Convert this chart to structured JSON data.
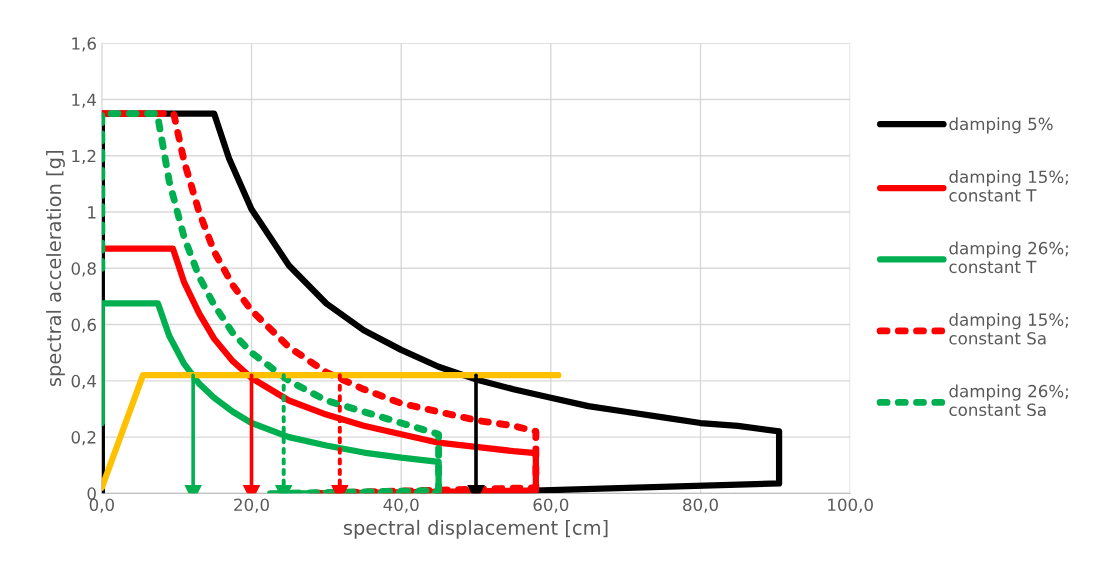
{
  "chart_data": {
    "type": "line",
    "xlabel": "spectral displacement [cm]",
    "ylabel": "spectral acceleration [g]",
    "xlim": [
      0,
      100
    ],
    "xticks": [
      {
        "value": 0,
        "label": "0,0"
      },
      {
        "value": 20,
        "label": "20,0"
      },
      {
        "value": 40,
        "label": "40,0"
      },
      {
        "value": 60,
        "label": "60,0"
      },
      {
        "value": 80,
        "label": "80,0"
      },
      {
        "value": 100,
        "label": "100,0"
      }
    ],
    "ylim": [
      0,
      1.6
    ],
    "yticks": [
      0,
      {
        "value": 0.2,
        "label": "0,2"
      },
      {
        "value": 0.4,
        "label": "0,4"
      },
      {
        "value": 0.6,
        "label": "0,6"
      },
      {
        "value": 0.8,
        "label": "0,8"
      },
      1,
      {
        "value": 1.2,
        "label": "1,2"
      },
      {
        "value": 1.4,
        "label": "1,4"
      },
      {
        "value": 1.6,
        "label": "1,6"
      }
    ],
    "grid": true,
    "legend": "right",
    "marker": "none",
    "series": [
      {
        "name": "damping 5%",
        "color": "#000000",
        "line_style": "solid",
        "x": [
          0,
          0,
          15,
          17,
          20,
          25,
          30,
          35,
          40,
          45,
          50,
          55,
          60,
          65,
          70,
          75,
          80,
          85,
          90.5,
          90.5,
          45
        ],
        "values": [
          0,
          1.35,
          1.35,
          1.19,
          1.01,
          0.81,
          0.675,
          0.58,
          0.51,
          0.45,
          0.405,
          0.37,
          0.34,
          0.31,
          0.29,
          0.27,
          0.25,
          0.24,
          0.22,
          0.035,
          0
        ]
      },
      {
        "name": "damping 15%;\nconstant T",
        "color": "#ff0000",
        "line_style": "solid",
        "x": [
          0,
          9.5,
          11,
          13,
          15,
          17.5,
          20,
          25,
          30,
          35,
          40,
          45,
          50,
          55,
          58,
          58,
          29
        ],
        "values": [
          0.87,
          0.87,
          0.75,
          0.64,
          0.55,
          0.47,
          0.41,
          0.33,
          0.28,
          0.24,
          0.21,
          0.18,
          0.165,
          0.15,
          0.143,
          0.01,
          0
        ]
      },
      {
        "name": "damping 26%;\nconstant T",
        "color": "#00b050",
        "line_style": "solid",
        "x": [
          0,
          0,
          7.5,
          9,
          11,
          13,
          15,
          17.5,
          20,
          25,
          30,
          35,
          40,
          45,
          45,
          22.5
        ],
        "values": [
          0.25,
          0.675,
          0.675,
          0.56,
          0.46,
          0.39,
          0.34,
          0.29,
          0.25,
          0.2,
          0.17,
          0.145,
          0.127,
          0.112,
          0,
          0
        ]
      },
      {
        "name": "damping 15%;\nconstant Sa",
        "color": "#ff0000",
        "line_style": "dotted",
        "x": [
          0,
          9.6,
          11,
          13,
          15,
          17.5,
          20,
          25,
          30,
          35,
          40,
          45,
          50,
          55,
          58,
          58,
          28
        ],
        "values": [
          1.35,
          1.35,
          1.18,
          1.0,
          0.86,
          0.74,
          0.65,
          0.52,
          0.43,
          0.37,
          0.32,
          0.29,
          0.26,
          0.24,
          0.22,
          0.02,
          0
        ]
      },
      {
        "name": "damping 26%;\nconstant Sa",
        "color": "#00b050",
        "line_style": "dotted",
        "x": [
          0,
          0,
          7.4,
          9,
          11,
          13,
          15,
          17.5,
          20,
          25,
          30,
          35,
          40,
          45,
          45,
          24
        ],
        "values": [
          0.8,
          1.35,
          1.35,
          1.11,
          0.91,
          0.77,
          0.67,
          0.57,
          0.5,
          0.4,
          0.33,
          0.29,
          0.25,
          0.21,
          0.01,
          0
        ]
      },
      {
        "color": "#ffc000",
        "line_style": "solid",
        "x": [
          0,
          5.5,
          61
        ],
        "values": [
          0.02,
          0.42,
          0.42
        ]
      },
      {
        "color": "#00b050",
        "line_style": "solid",
        "marker": "triangle",
        "x": [
          12.2,
          12.2
        ],
        "values": [
          0.42,
          0
        ]
      },
      {
        "color": "#ff0000",
        "line_style": "solid",
        "marker": "triangle",
        "x": [
          20,
          20
        ],
        "values": [
          0.42,
          0
        ]
      },
      {
        "color": "#00b050",
        "line_style": "dotted",
        "marker": "triangle",
        "x": [
          24.3,
          24.3
        ],
        "values": [
          0.42,
          0
        ]
      },
      {
        "color": "#ff0000",
        "line_style": "dotted",
        "marker": "triangle",
        "x": [
          31.8,
          31.8
        ],
        "values": [
          0.42,
          0
        ]
      },
      {
        "color": "#000000",
        "line_style": "solid",
        "marker": "triangle",
        "x": [
          50,
          50
        ],
        "values": [
          0.42,
          0
        ]
      }
    ]
  }
}
